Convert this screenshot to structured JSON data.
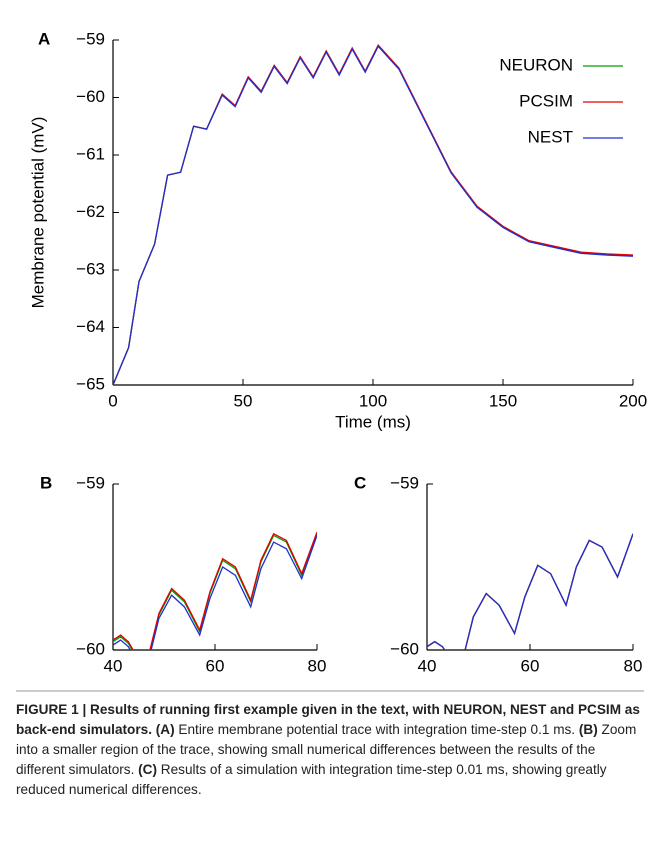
{
  "chart_data": [
    {
      "type": "line",
      "panel_label": "A",
      "xlabel": "Time (ms)",
      "ylabel": "Membrane potential (mV)",
      "x": [
        0,
        6,
        10,
        16,
        21,
        26,
        31,
        36,
        42,
        47,
        52,
        57,
        62,
        67,
        72,
        77,
        82,
        87,
        92,
        97,
        102,
        110,
        120,
        130,
        140,
        150,
        160,
        170,
        180,
        190,
        200
      ],
      "series": [
        {
          "name": "NEURON",
          "color": "#00a000",
          "values": [
            -65,
            -64.35,
            -63.2,
            -62.55,
            -61.35,
            -61.3,
            -60.5,
            -60.55,
            -59.95,
            -60.15,
            -59.65,
            -59.9,
            -59.45,
            -59.75,
            -59.3,
            -59.65,
            -59.2,
            -59.6,
            -59.15,
            -59.55,
            -59.1,
            -59.5,
            -60.4,
            -61.3,
            -61.9,
            -62.25,
            -62.5,
            -62.6,
            -62.7,
            -62.73,
            -62.75
          ]
        },
        {
          "name": "PCSIM",
          "color": "#e00000",
          "values": [
            -65,
            -64.35,
            -63.2,
            -62.55,
            -61.35,
            -61.3,
            -60.5,
            -60.55,
            -59.94,
            -60.14,
            -59.64,
            -59.89,
            -59.44,
            -59.74,
            -59.29,
            -59.64,
            -59.19,
            -59.59,
            -59.14,
            -59.54,
            -59.09,
            -59.49,
            -60.39,
            -61.29,
            -61.89,
            -62.24,
            -62.49,
            -62.59,
            -62.69,
            -62.72,
            -62.74
          ]
        },
        {
          "name": "NEST",
          "color": "#2030d0",
          "values": [
            -65,
            -64.35,
            -63.2,
            -62.55,
            -61.35,
            -61.3,
            -60.5,
            -60.55,
            -59.96,
            -60.16,
            -59.66,
            -59.91,
            -59.46,
            -59.76,
            -59.31,
            -59.66,
            -59.21,
            -59.61,
            -59.16,
            -59.56,
            -59.11,
            -59.51,
            -60.41,
            -61.31,
            -61.91,
            -62.26,
            -62.51,
            -62.61,
            -62.71,
            -62.74,
            -62.76
          ]
        }
      ],
      "xlim": [
        0,
        200
      ],
      "xticks": [
        0,
        50,
        100,
        150,
        200
      ],
      "ylim": [
        -65,
        -59
      ],
      "yticks": [
        {
          "value": -65,
          "label": "−65"
        },
        {
          "value": -64,
          "label": "−64"
        },
        {
          "value": -63,
          "label": "−63"
        },
        {
          "value": -62,
          "label": "−62"
        },
        {
          "value": -61,
          "label": "−61"
        },
        {
          "value": -60,
          "label": "−60"
        },
        {
          "value": -59,
          "label": "−59"
        }
      ],
      "legend": "upper right"
    },
    {
      "type": "line",
      "panel_label": "B",
      "x": [
        40,
        41.5,
        43,
        44.5,
        47,
        49,
        51.5,
        54,
        57,
        59,
        61.5,
        64,
        67,
        69,
        71.5,
        74,
        77,
        80
      ],
      "series": [
        {
          "color": "#00a000",
          "values": [
            -59.95,
            -59.92,
            -59.96,
            -60.04,
            -60.04,
            -59.79,
            -59.64,
            -59.71,
            -59.89,
            -59.66,
            -59.46,
            -59.51,
            -59.71,
            -59.47,
            -59.31,
            -59.35,
            -59.55,
            -59.3
          ]
        },
        {
          "color": "#e00000",
          "values": [
            -59.94,
            -59.91,
            -59.95,
            -60.03,
            -60.03,
            -59.78,
            -59.63,
            -59.7,
            -59.88,
            -59.65,
            -59.45,
            -59.5,
            -59.7,
            -59.46,
            -59.3,
            -59.34,
            -59.54,
            -59.29
          ]
        },
        {
          "color": "#2030d0",
          "values": [
            -59.97,
            -59.94,
            -59.98,
            -60.06,
            -60.06,
            -59.81,
            -59.67,
            -59.74,
            -59.91,
            -59.69,
            -59.5,
            -59.55,
            -59.74,
            -59.51,
            -59.35,
            -59.39,
            -59.57,
            -59.31
          ]
        }
      ],
      "xlim": [
        40,
        80
      ],
      "xticks": [
        40,
        60,
        80
      ],
      "ylim": [
        -60,
        -59
      ],
      "yticks": [
        {
          "value": -60,
          "label": "−60"
        },
        {
          "value": -59,
          "label": "−59"
        }
      ]
    },
    {
      "type": "line",
      "panel_label": "C",
      "x": [
        40,
        41.5,
        43,
        44.5,
        47,
        49,
        51.5,
        54,
        57,
        59,
        61.5,
        64,
        67,
        69,
        71.5,
        74,
        77,
        80
      ],
      "series": [
        {
          "color": "#00a000",
          "values": [
            -59.98,
            -59.95,
            -59.98,
            -60.05,
            -60.05,
            -59.8,
            -59.66,
            -59.73,
            -59.9,
            -59.68,
            -59.49,
            -59.54,
            -59.73,
            -59.5,
            -59.34,
            -59.38,
            -59.56,
            -59.3
          ]
        },
        {
          "color": "#e00000",
          "values": [
            -59.98,
            -59.95,
            -59.98,
            -60.05,
            -60.05,
            -59.8,
            -59.66,
            -59.73,
            -59.9,
            -59.68,
            -59.49,
            -59.54,
            -59.73,
            -59.5,
            -59.34,
            -59.38,
            -59.56,
            -59.3
          ]
        },
        {
          "color": "#2030d0",
          "values": [
            -59.98,
            -59.95,
            -59.98,
            -60.05,
            -60.05,
            -59.8,
            -59.66,
            -59.73,
            -59.9,
            -59.68,
            -59.49,
            -59.54,
            -59.73,
            -59.5,
            -59.34,
            -59.38,
            -59.56,
            -59.3
          ]
        }
      ],
      "xlim": [
        40,
        80
      ],
      "xticks": [
        40,
        60,
        80
      ],
      "ylim": [
        -60,
        -59
      ],
      "yticks": [
        {
          "value": -60,
          "label": "−60"
        },
        {
          "value": -59,
          "label": "−59"
        }
      ]
    }
  ],
  "caption": [
    {
      "text": "FIGURE 1 | Results of running first example given in the text, with NEURON, NEST and PCSIM as back-end simulators.",
      "bold": true
    },
    {
      "text": " ",
      "bold": false
    },
    {
      "text": "(A)",
      "bold": true
    },
    {
      "text": " Entire membrane potential trace with integration time-step 0.1 ms. ",
      "bold": false
    },
    {
      "text": "(B)",
      "bold": true
    },
    {
      "text": " Zoom into a smaller region of the trace, showing small numerical differences between the results of the different simulators. ",
      "bold": false
    },
    {
      "text": "(C)",
      "bold": true
    },
    {
      "text": " Results of a simulation with integration time-step 0.01 ms, showing greatly reduced numerical differences.",
      "bold": false
    }
  ]
}
